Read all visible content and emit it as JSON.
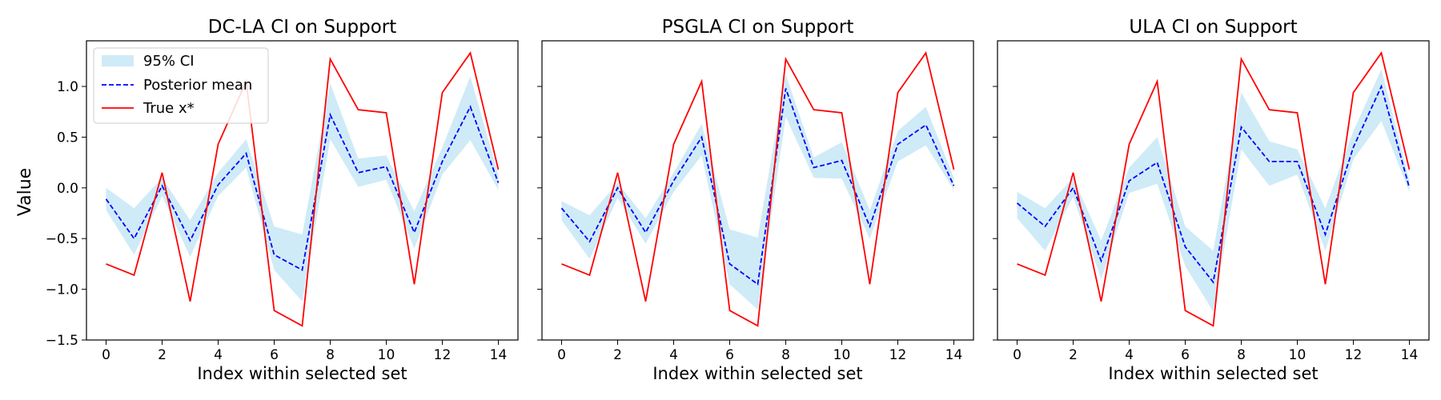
{
  "figure": {
    "shared_ylabel": "Value"
  },
  "legend": {
    "ci_label": "95% CI",
    "mean_label": "Posterior mean",
    "true_label": "True x*"
  },
  "colors": {
    "ci_fill": "#87ceeb",
    "mean_line": "#0000ff",
    "true_line": "#ff0000",
    "axes": "#000000",
    "background": "#ffffff"
  },
  "chart_data": [
    {
      "type": "line",
      "title": "DC-LA CI on Support",
      "xlabel": "Index within selected set",
      "ylabel": "Value",
      "x": [
        0,
        1,
        2,
        3,
        4,
        5,
        6,
        7,
        8,
        9,
        10,
        11,
        12,
        13,
        14
      ],
      "xlim": [
        -0.7,
        14.7
      ],
      "ylim": [
        -1.5,
        1.45
      ],
      "xticks": [
        0,
        2,
        4,
        6,
        8,
        10,
        12,
        14
      ],
      "yticks": [
        -1.5,
        -1.0,
        -0.5,
        0.0,
        0.5,
        1.0
      ],
      "ytick_labels": [
        "−1.5",
        "−1.0",
        "−0.5",
        "0.0",
        "0.5",
        "1.0"
      ],
      "show_ytick_labels": true,
      "legend": "top-left",
      "grid": false,
      "series": [
        {
          "name": "Posterior mean",
          "kind": "dashed-line",
          "values": [
            -0.11,
            -0.5,
            0.02,
            -0.52,
            0.03,
            0.34,
            -0.66,
            -0.81,
            0.72,
            0.15,
            0.21,
            -0.44,
            0.26,
            0.8,
            0.05
          ]
        },
        {
          "name": "True x*",
          "kind": "line",
          "values": [
            -0.75,
            -0.86,
            0.15,
            -1.12,
            0.43,
            1.05,
            -1.21,
            -1.36,
            1.27,
            0.77,
            0.74,
            -0.95,
            0.94,
            1.33,
            0.18
          ]
        },
        {
          "name": "95% CI",
          "kind": "band",
          "lower": [
            -0.22,
            -0.66,
            -0.08,
            -0.68,
            -0.08,
            0.2,
            -0.81,
            -1.12,
            0.48,
            0.01,
            0.08,
            -0.6,
            0.13,
            0.47,
            -0.02
          ],
          "upper": [
            0.0,
            -0.2,
            0.1,
            -0.32,
            0.15,
            0.48,
            -0.38,
            -0.46,
            1.03,
            0.29,
            0.32,
            -0.23,
            0.4,
            1.1,
            0.13
          ]
        }
      ]
    },
    {
      "type": "line",
      "title": "PSGLA CI on Support",
      "xlabel": "Index within selected set",
      "ylabel": "",
      "x": [
        0,
        1,
        2,
        3,
        4,
        5,
        6,
        7,
        8,
        9,
        10,
        11,
        12,
        13,
        14
      ],
      "xlim": [
        -0.7,
        14.7
      ],
      "ylim": [
        -1.5,
        1.45
      ],
      "xticks": [
        0,
        2,
        4,
        6,
        8,
        10,
        12,
        14
      ],
      "yticks": [
        -1.5,
        -1.0,
        -0.5,
        0.0,
        0.5,
        1.0
      ],
      "ytick_labels": [
        "",
        "",
        "",
        "",
        "",
        ""
      ],
      "show_ytick_labels": false,
      "legend": "none",
      "grid": false,
      "series": [
        {
          "name": "Posterior mean",
          "kind": "dashed-line",
          "values": [
            -0.2,
            -0.53,
            0.0,
            -0.44,
            0.07,
            0.5,
            -0.75,
            -0.95,
            0.98,
            0.2,
            0.27,
            -0.38,
            0.43,
            0.62,
            0.02
          ]
        },
        {
          "name": "True x*",
          "kind": "line",
          "values": [
            -0.75,
            -0.86,
            0.15,
            -1.12,
            0.43,
            1.05,
            -1.21,
            -1.36,
            1.27,
            0.77,
            0.74,
            -0.95,
            0.94,
            1.33,
            0.18
          ]
        },
        {
          "name": "95% CI",
          "kind": "band",
          "lower": [
            -0.32,
            -0.7,
            -0.1,
            -0.55,
            -0.04,
            0.32,
            -0.95,
            -1.2,
            0.7,
            0.1,
            0.09,
            -0.5,
            0.26,
            0.42,
            -0.02
          ],
          "upper": [
            -0.13,
            -0.27,
            0.05,
            -0.3,
            0.15,
            0.63,
            -0.41,
            -0.49,
            1.12,
            0.3,
            0.45,
            -0.22,
            0.56,
            0.8,
            0.1
          ]
        }
      ]
    },
    {
      "type": "line",
      "title": "ULA CI on Support",
      "xlabel": "Index within selected set",
      "ylabel": "",
      "x": [
        0,
        1,
        2,
        3,
        4,
        5,
        6,
        7,
        8,
        9,
        10,
        11,
        12,
        13,
        14
      ],
      "xlim": [
        -0.7,
        14.7
      ],
      "ylim": [
        -1.5,
        1.45
      ],
      "xticks": [
        0,
        2,
        4,
        6,
        8,
        10,
        12,
        14
      ],
      "yticks": [
        -1.5,
        -1.0,
        -0.5,
        0.0,
        0.5,
        1.0
      ],
      "ytick_labels": [
        "",
        "",
        "",
        "",
        "",
        ""
      ],
      "show_ytick_labels": false,
      "legend": "none",
      "grid": false,
      "series": [
        {
          "name": "Posterior mean",
          "kind": "dashed-line",
          "values": [
            -0.15,
            -0.38,
            0.0,
            -0.72,
            0.07,
            0.25,
            -0.58,
            -0.93,
            0.6,
            0.26,
            0.26,
            -0.46,
            0.4,
            1.0,
            0.0
          ]
        },
        {
          "name": "True x*",
          "kind": "line",
          "values": [
            -0.75,
            -0.86,
            0.15,
            -1.12,
            0.43,
            1.05,
            -1.21,
            -1.36,
            1.27,
            0.77,
            0.74,
            -0.95,
            0.94,
            1.33,
            0.18
          ]
        },
        {
          "name": "95% CI",
          "kind": "band",
          "lower": [
            -0.3,
            -0.62,
            -0.09,
            -0.9,
            -0.05,
            0.04,
            -0.77,
            -1.22,
            0.38,
            0.02,
            0.13,
            -0.62,
            0.28,
            0.66,
            -0.04
          ],
          "upper": [
            -0.04,
            -0.2,
            0.1,
            -0.52,
            0.2,
            0.5,
            -0.38,
            -0.62,
            0.94,
            0.46,
            0.38,
            -0.2,
            0.56,
            1.17,
            0.08
          ]
        }
      ]
    }
  ]
}
